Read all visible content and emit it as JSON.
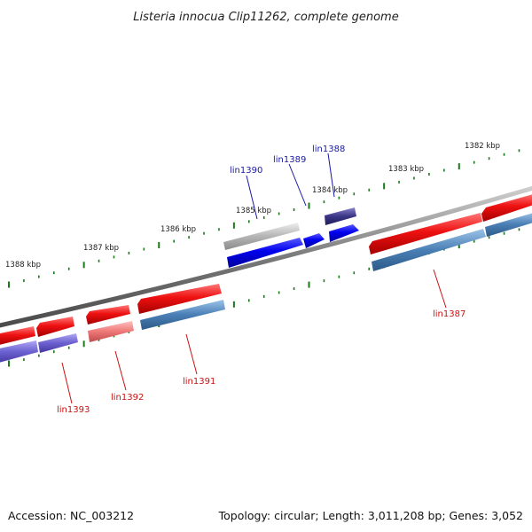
{
  "title": "Listeria innocua Clip11262, complete genome",
  "footer": {
    "accession": "Accession: NC_003212",
    "summary": "Topology: circular; Length: 3,011,208 bp; Genes: 3,052"
  },
  "scale_labels": [
    "1382 kbp",
    "1383 kbp",
    "1384 kbp",
    "1385 kbp",
    "1386 kbp",
    "1387 kbp",
    "1388 kbp"
  ],
  "genes_forward": [
    {
      "name": "lin1390",
      "color": "#0000ee"
    },
    {
      "name": "lin1389",
      "color": "#0000ee"
    },
    {
      "name": "lin1388",
      "color": "#1a1aa6"
    }
  ],
  "genes_reverse": [
    {
      "name": "lin1387",
      "color": "#cc1111"
    },
    {
      "name": "lin1391",
      "color": "#cc1111"
    },
    {
      "name": "lin1392",
      "color": "#cc1111"
    },
    {
      "name": "lin1393",
      "color": "#cc1111"
    }
  ],
  "colors": {
    "backbone": "#7a7a7a",
    "tick": "#1a7a1a",
    "feature_red": "#ee1111",
    "feature_blue": "#0000ee",
    "feature_steel": "#4a7fb5",
    "feature_purple": "#6a5fcf",
    "feature_pink": "#ee7777",
    "feature_grey": "#b5b5b5",
    "feature_navy": "#3a3585"
  }
}
